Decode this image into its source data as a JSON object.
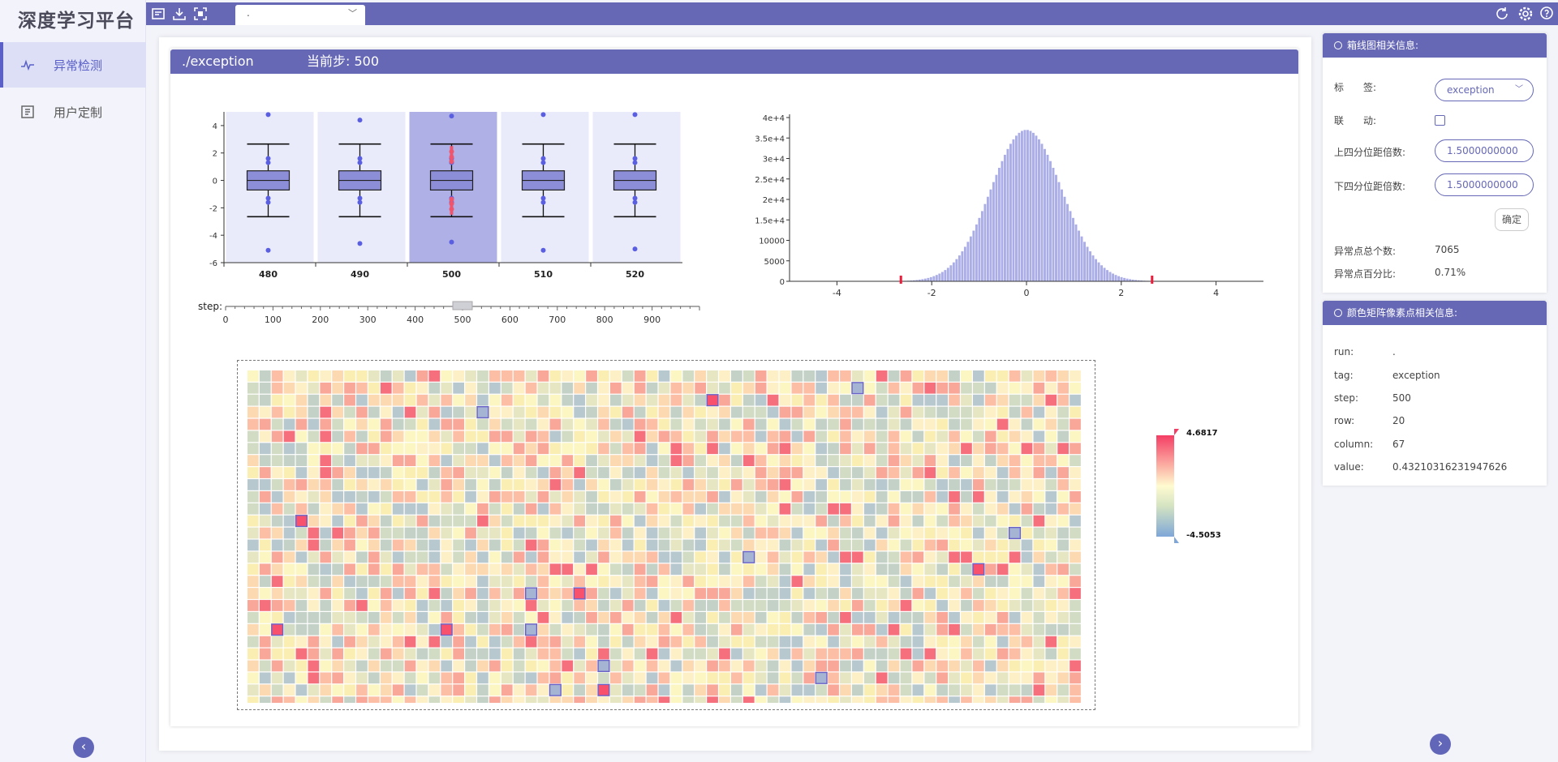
{
  "sidebar": {
    "title": "深度学习平台",
    "items": [
      {
        "label": "异常检测",
        "icon": "anomaly-icon",
        "active": true
      },
      {
        "label": "用户定制",
        "icon": "custom-icon",
        "active": false
      }
    ]
  },
  "topbar": {
    "run_value": ".",
    "icons": [
      "upload-log-icon",
      "download-icon",
      "fullscreen-icon",
      "refresh-icon",
      "settings-icon",
      "help-icon"
    ]
  },
  "card": {
    "title": "./exception",
    "step_label": "当前步: 500"
  },
  "boxplot": {
    "steps": [
      "480",
      "490",
      "500",
      "510",
      "520"
    ],
    "selected_step": "500",
    "y_ticks": [
      "4",
      "2",
      "0",
      "-2",
      "-4",
      "-6"
    ],
    "ylim": [
      -6,
      5
    ],
    "boxes": [
      {
        "step": "480",
        "q1": -0.7,
        "median": 0,
        "q3": 0.7,
        "whisker_low": -2.65,
        "whisker_high": 2.65,
        "outliers": [
          4.8,
          -5.1,
          1.6,
          -1.6,
          1.3,
          -1.3
        ]
      },
      {
        "step": "490",
        "q1": -0.7,
        "median": 0,
        "q3": 0.7,
        "whisker_low": -2.65,
        "whisker_high": 2.65,
        "outliers": [
          4.4,
          -4.6,
          1.6,
          -1.6,
          1.3,
          -1.3
        ]
      },
      {
        "step": "500",
        "q1": -0.7,
        "median": 0,
        "q3": 0.7,
        "whisker_low": -2.65,
        "whisker_high": 2.65,
        "outliers": [
          4.7,
          -4.5,
          1.6,
          -1.6,
          1.3,
          -1.3
        ]
      },
      {
        "step": "510",
        "q1": -0.7,
        "median": 0,
        "q3": 0.7,
        "whisker_low": -2.65,
        "whisker_high": 2.65,
        "outliers": [
          4.8,
          -5.1,
          1.6,
          -1.6,
          1.3,
          -1.3
        ]
      },
      {
        "step": "520",
        "q1": -0.7,
        "median": 0,
        "q3": 0.7,
        "whisker_low": -2.65,
        "whisker_high": 2.65,
        "outliers": [
          4.8,
          -5.0,
          1.6,
          -1.6,
          1.3,
          -1.3
        ]
      }
    ]
  },
  "slider": {
    "label": "step:",
    "ticks": [
      "0",
      "100",
      "200",
      "300",
      "400",
      "500",
      "600",
      "700",
      "800",
      "900"
    ],
    "value": 500,
    "max": 1000
  },
  "chart_data": {
    "type": "bar",
    "title": "",
    "x_ticks": [
      "-4",
      "-2",
      "0",
      "2",
      "4"
    ],
    "y_ticks": [
      "4e+4",
      "3.5e+4",
      "3e+4",
      "2.5e+4",
      "2e+4",
      "1.5e+4",
      "10000",
      "5000",
      "0"
    ],
    "xlim": [
      -5,
      5
    ],
    "ylim": [
      0,
      40000
    ],
    "distribution": "normal",
    "mean": 0,
    "std": 0.75,
    "peak_count": 37000,
    "threshold_markers": [
      -2.65,
      2.65
    ]
  },
  "heatmap": {
    "rows": 28,
    "columns": 69,
    "selected_row": 20,
    "selected_column": 67
  },
  "legend": {
    "max": "4.6817",
    "min": "-4.5053"
  },
  "boxplot_panel": {
    "title": "箱线图相关信息:",
    "tag_label": "标　　签:",
    "tag_value": "exception",
    "link_label": "联　　动:",
    "upper_label": "上四分位距倍数:",
    "upper_value": "1.5000000000",
    "lower_label": "下四分位距倍数:",
    "lower_value": "1.5000000000",
    "confirm": "确定",
    "total_label": "异常点总个数:",
    "total_value": "7065",
    "percent_label": "异常点百分比:",
    "percent_value": "0.71%"
  },
  "pixel_panel": {
    "title": "颜色矩阵像素点相关信息:",
    "rows": [
      {
        "k": "run:",
        "v": "."
      },
      {
        "k": "tag:",
        "v": "exception"
      },
      {
        "k": "step:",
        "v": "500"
      },
      {
        "k": "row:",
        "v": "20"
      },
      {
        "k": "column:",
        "v": "67"
      },
      {
        "k": "value:",
        "v": "0.43210316231947626"
      }
    ]
  }
}
